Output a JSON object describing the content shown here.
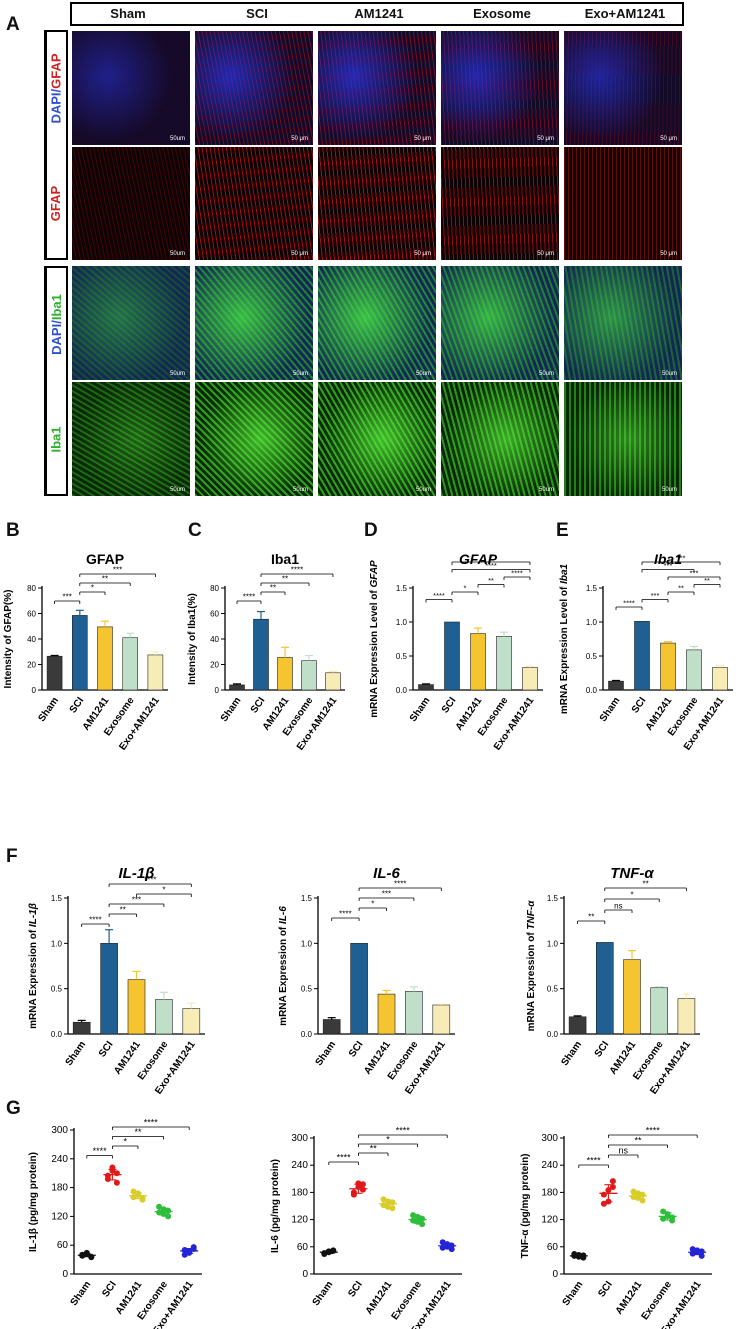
{
  "panel_letters": {
    "A": "A",
    "B": "B",
    "C": "C",
    "D": "D",
    "E": "E",
    "F": "F",
    "G": "G"
  },
  "groups": [
    "Sham",
    "SCI",
    "AM1241",
    "Exosome",
    "Exo+AM1241"
  ],
  "colors": {
    "sham": "#3a3a3a",
    "sci": "#1f5f92",
    "am1241": "#f5c431",
    "exosome": "#bfdfc8",
    "exo_am1241": "#f8ecb6",
    "g_sham": "#111111",
    "g_sci": "#e01919",
    "g_am1241": "#d8cd2a",
    "g_exosome": "#2fbe3c",
    "g_exo_am1241": "#2424d6"
  },
  "micrographs": {
    "row_labels": {
      "dapi_prefix": "DAPI/",
      "gfap": "GFAP",
      "iba1": "Iba1"
    },
    "scalebar_labels": [
      "50um",
      "50 μm",
      "50 μm",
      "50 μm",
      "50 μm"
    ],
    "scalebar_labels_gfap": [
      "50um",
      "50 μm",
      "50 μm",
      "50 μm",
      "50 μm"
    ],
    "scalebar_labels_iba1": [
      "50um",
      "50um",
      "50um",
      "50um",
      "50um"
    ],
    "scalebar_labels_iba1_single": [
      "50um",
      "50um",
      "50um",
      "50um",
      "50um"
    ]
  },
  "chart_data": [
    {
      "id": "B",
      "type": "bar",
      "title": "GFAP",
      "ylabel": "Intensity of GFAP(%)",
      "categories": [
        "Sham",
        "SCI",
        "AM1241",
        "Exosome",
        "Exo+AM1241"
      ],
      "values": [
        26.5,
        58.5,
        49.5,
        41,
        27.5
      ],
      "errors": [
        0.6,
        4,
        4.5,
        3.5,
        2.3
      ],
      "ylim": [
        0,
        80
      ],
      "yticks": [
        "0",
        "20",
        "40",
        "60",
        "80"
      ],
      "significance": [
        {
          "a": 0,
          "b": 1,
          "label": "***"
        },
        {
          "a": 1,
          "b": 2,
          "label": "*"
        },
        {
          "a": 1,
          "b": 3,
          "label": "**"
        },
        {
          "a": 1,
          "b": 4,
          "label": "***"
        }
      ]
    },
    {
      "id": "C",
      "type": "bar",
      "title": "Iba1",
      "ylabel": "Intensity of Iba1(%)",
      "categories": [
        "Sham",
        "SCI",
        "AM1241",
        "Exosome",
        "Exo+AM1241"
      ],
      "values": [
        4,
        55.5,
        25.5,
        23,
        13.5
      ],
      "errors": [
        0.8,
        6,
        8,
        4,
        1
      ],
      "ylim": [
        0,
        80
      ],
      "yticks": [
        "0",
        "20",
        "40",
        "60",
        "80"
      ],
      "significance": [
        {
          "a": 0,
          "b": 1,
          "label": "****"
        },
        {
          "a": 1,
          "b": 2,
          "label": "**"
        },
        {
          "a": 1,
          "b": 3,
          "label": "**"
        },
        {
          "a": 1,
          "b": 4,
          "label": "****"
        }
      ]
    },
    {
      "id": "D",
      "type": "bar",
      "title": "GFAP",
      "ylabel": "mRNA Expression Level of GFAP",
      "ylabel_main": "mRNA Expression Level of",
      "ylabel_gene": "GFAP",
      "italic_title": true,
      "categories": [
        "Sham",
        "SCI",
        "AM1241",
        "Exosome",
        "Exo+AM1241"
      ],
      "values": [
        0.08,
        1.0,
        0.83,
        0.79,
        0.33
      ],
      "errors": [
        0.01,
        0.0,
        0.08,
        0.06,
        0.02
      ],
      "ylim": [
        0,
        1.5
      ],
      "yticks": [
        "0.0",
        "0.5",
        "1.0",
        "1.5"
      ],
      "significance": [
        {
          "a": 0,
          "b": 1,
          "label": "****"
        },
        {
          "a": 1,
          "b": 4,
          "label": "****"
        },
        {
          "a": 1,
          "b": 4,
          "label": "*"
        },
        {
          "a": 1,
          "b": 2,
          "label": "*"
        },
        {
          "a": 2,
          "b": 3,
          "label": "**"
        },
        {
          "a": 3,
          "b": 4,
          "label": "****"
        }
      ]
    },
    {
      "id": "E",
      "type": "bar",
      "title": "Iba1",
      "ylabel": "mRNA Expression Level of Iba1",
      "ylabel_main": "mRNA Expression Level of",
      "ylabel_gene": "Iba1",
      "italic_title": true,
      "categories": [
        "Sham",
        "SCI",
        "AM1241",
        "Exosome",
        "Exo+AM1241"
      ],
      "values": [
        0.13,
        1.01,
        0.69,
        0.59,
        0.33
      ],
      "errors": [
        0.01,
        0.0,
        0.02,
        0.05,
        0.03
      ],
      "ylim": [
        0,
        1.5
      ],
      "yticks": [
        "0.0",
        "0.5",
        "1.0",
        "1.5"
      ],
      "significance": [
        {
          "a": 0,
          "b": 1,
          "label": "****"
        },
        {
          "a": 1,
          "b": 4,
          "label": "***"
        },
        {
          "a": 1,
          "b": 2,
          "label": "***"
        },
        {
          "a": 2,
          "b": 4,
          "label": "***"
        },
        {
          "a": 1,
          "b": 3,
          "label": "***"
        },
        {
          "a": 2,
          "b": 3,
          "label": "**"
        },
        {
          "a": 3,
          "b": 4,
          "label": "**"
        }
      ]
    },
    {
      "id": "F1",
      "type": "bar",
      "title": "IL-1β",
      "ylabel": "mRNA Expression of IL-1β",
      "ylabel_main": "mRNA Expression of",
      "ylabel_gene": "IL-1β",
      "italic_title": true,
      "categories": [
        "Sham",
        "SCI",
        "AM1241",
        "Exosome",
        "Exo+AM1241"
      ],
      "values": [
        0.13,
        1.0,
        0.6,
        0.38,
        0.28
      ],
      "errors": [
        0.02,
        0.15,
        0.09,
        0.08,
        0.06
      ],
      "ylim": [
        0,
        1.5
      ],
      "yticks": [
        "0.0",
        "0.5",
        "1.0",
        "1.5"
      ],
      "significance": [
        {
          "a": 0,
          "b": 1,
          "label": "****"
        },
        {
          "a": 1,
          "b": 4,
          "label": "****"
        },
        {
          "a": 1,
          "b": 3,
          "label": "***"
        },
        {
          "a": 1,
          "b": 2,
          "label": "**"
        },
        {
          "a": 2,
          "b": 4,
          "label": "*"
        }
      ]
    },
    {
      "id": "F2",
      "type": "bar",
      "title": "IL-6",
      "ylabel": "mRNA Expression of IL-6",
      "ylabel_main": "mRNA Expression of",
      "ylabel_gene": "IL-6",
      "italic_title": true,
      "categories": [
        "Sham",
        "SCI",
        "AM1241",
        "Exosome",
        "Exo+AM1241"
      ],
      "values": [
        0.16,
        1.0,
        0.44,
        0.47,
        0.32
      ],
      "errors": [
        0.02,
        0.0,
        0.04,
        0.05,
        0.01
      ],
      "ylim": [
        0,
        1.5
      ],
      "yticks": [
        "0.0",
        "0.5",
        "1.0",
        "1.5"
      ],
      "significance": [
        {
          "a": 0,
          "b": 1,
          "label": "****"
        },
        {
          "a": 1,
          "b": 4,
          "label": "****"
        },
        {
          "a": 1,
          "b": 3,
          "label": "***"
        },
        {
          "a": 1,
          "b": 2,
          "label": "*"
        }
      ]
    },
    {
      "id": "F3",
      "type": "bar",
      "title": "TNF-α",
      "ylabel": "mRNA Expression of TNF-α",
      "ylabel_main": "mRNA Expression of",
      "ylabel_gene": "TNF-α",
      "italic_title": true,
      "categories": [
        "Sham",
        "SCI",
        "AM1241",
        "Exosome",
        "Exo+AM1241"
      ],
      "values": [
        0.19,
        1.01,
        0.82,
        0.51,
        0.39
      ],
      "errors": [
        0.01,
        0.0,
        0.1,
        0.01,
        0.05
      ],
      "ylim": [
        0,
        1.5
      ],
      "yticks": [
        "0.0",
        "0.5",
        "1.0",
        "1.5"
      ],
      "significance": [
        {
          "a": 0,
          "b": 1,
          "label": "**"
        },
        {
          "a": 1,
          "b": 4,
          "label": "**"
        },
        {
          "a": 1,
          "b": 3,
          "label": "*"
        },
        {
          "a": 1,
          "b": 2,
          "label": "ns"
        }
      ]
    },
    {
      "id": "G1",
      "type": "scatter",
      "ylabel": "IL-1β (pg/mg protein)",
      "categories": [
        "Sham",
        "SCI",
        "AM1241",
        "Exosome",
        "Exo+AM1241"
      ],
      "ylim": [
        0,
        300
      ],
      "yticks": [
        "0",
        "60",
        "120",
        "180",
        "240",
        "300"
      ],
      "points": [
        [
          38,
          42,
          36,
          40,
          44,
          35
        ],
        [
          205,
          215,
          190,
          198,
          222,
          210
        ],
        [
          160,
          168,
          155,
          172,
          165,
          158
        ],
        [
          128,
          135,
          120,
          140,
          125,
          132
        ],
        [
          50,
          44,
          56,
          40,
          48,
          52
        ]
      ],
      "means": [
        39,
        207,
        163,
        130,
        48
      ],
      "sds": [
        3,
        11,
        6,
        7,
        5
      ],
      "significance": [
        {
          "a": 0,
          "b": 1,
          "label": "****"
        },
        {
          "a": 1,
          "b": 2,
          "label": "*"
        },
        {
          "a": 1,
          "b": 3,
          "label": "**"
        },
        {
          "a": 1,
          "b": 4,
          "label": "****"
        }
      ]
    },
    {
      "id": "G2",
      "type": "scatter",
      "ylabel": "IL-6 (pg/mg protein)",
      "categories": [
        "Sham",
        "SCI",
        "AM1241",
        "Exosome",
        "Exo+AM1241"
      ],
      "ylim": [
        0,
        300
      ],
      "yticks": [
        "0",
        "60",
        "120",
        "180",
        "240",
        "300"
      ],
      "points": [
        [
          46,
          50,
          52,
          44,
          48,
          51
        ],
        [
          180,
          192,
          198,
          175,
          200,
          186
        ],
        [
          152,
          160,
          145,
          165,
          148,
          158
        ],
        [
          118,
          126,
          110,
          130,
          115,
          122
        ],
        [
          58,
          66,
          55,
          70,
          60,
          63
        ]
      ],
      "means": [
        48,
        188,
        155,
        120,
        62
      ],
      "sds": [
        3,
        10,
        8,
        8,
        6
      ],
      "significance": [
        {
          "a": 0,
          "b": 1,
          "label": "****"
        },
        {
          "a": 1,
          "b": 2,
          "label": "**"
        },
        {
          "a": 1,
          "b": 3,
          "label": "*"
        },
        {
          "a": 1,
          "b": 4,
          "label": "****"
        }
      ]
    },
    {
      "id": "G3",
      "type": "scatter",
      "ylabel": "TNF-α (pg/mg protein)",
      "categories": [
        "Sham",
        "SCI",
        "AM1241",
        "Exosome",
        "Exo+AM1241"
      ],
      "ylim": [
        0,
        300
      ],
      "yticks": [
        "0",
        "60",
        "120",
        "180",
        "240",
        "300"
      ],
      "points": [
        [
          40,
          42,
          36,
          44,
          38,
          41
        ],
        [
          155,
          185,
          205,
          175,
          160,
          192
        ],
        [
          170,
          178,
          162,
          182,
          168,
          175
        ],
        [
          122,
          132,
          118,
          138,
          128,
          125
        ],
        [
          45,
          52,
          40,
          55,
          48,
          50
        ]
      ],
      "means": [
        40,
        178,
        172,
        127,
        48
      ],
      "sds": [
        3,
        19,
        7,
        8,
        5
      ],
      "significance": [
        {
          "a": 0,
          "b": 1,
          "label": "****"
        },
        {
          "a": 1,
          "b": 2,
          "label": "ns"
        },
        {
          "a": 1,
          "b": 3,
          "label": "**"
        },
        {
          "a": 1,
          "b": 4,
          "label": "****"
        }
      ]
    }
  ]
}
